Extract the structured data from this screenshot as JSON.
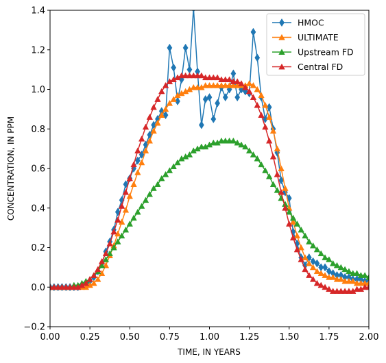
{
  "chart_data": {
    "type": "line",
    "xlabel": "TIME, IN YEARS",
    "ylabel": "CONCENTRATION, IN PPM",
    "xlim": [
      0.0,
      2.0
    ],
    "ylim": [
      -0.2,
      1.4
    ],
    "xticks": [
      "0.00",
      "0.25",
      "0.50",
      "0.75",
      "1.00",
      "1.25",
      "1.50",
      "1.75",
      "2.00"
    ],
    "yticks": [
      "−0.2",
      "0.0",
      "0.2",
      "0.4",
      "0.6",
      "0.8",
      "1.0",
      "1.2",
      "1.4"
    ],
    "grid": false,
    "legend_position": "top-right",
    "series": [
      {
        "name": "HMOC",
        "color": "#1f77b4",
        "marker": "diamond",
        "x": [
          0.0,
          0.025,
          0.05,
          0.075,
          0.1,
          0.125,
          0.15,
          0.175,
          0.2,
          0.225,
          0.25,
          0.275,
          0.3,
          0.325,
          0.35,
          0.375,
          0.4,
          0.425,
          0.45,
          0.475,
          0.5,
          0.525,
          0.55,
          0.575,
          0.6,
          0.625,
          0.65,
          0.675,
          0.7,
          0.725,
          0.75,
          0.775,
          0.8,
          0.825,
          0.85,
          0.875,
          0.9,
          0.925,
          0.95,
          0.975,
          1.0,
          1.025,
          1.05,
          1.075,
          1.1,
          1.125,
          1.15,
          1.175,
          1.2,
          1.225,
          1.25,
          1.275,
          1.3,
          1.325,
          1.35,
          1.375,
          1.4,
          1.425,
          1.45,
          1.475,
          1.5,
          1.525,
          1.55,
          1.575,
          1.6,
          1.625,
          1.65,
          1.675,
          1.7,
          1.725,
          1.75,
          1.775,
          1.8,
          1.825,
          1.85,
          1.875,
          1.9,
          1.925,
          1.95,
          1.975,
          2.0
        ],
        "y": [
          0.0,
          0.0,
          0.0,
          0.0,
          0.0,
          0.0,
          0.0,
          0.0,
          0.01,
          0.02,
          0.03,
          0.05,
          0.08,
          0.12,
          0.18,
          0.23,
          0.29,
          0.38,
          0.44,
          0.52,
          0.55,
          0.6,
          0.64,
          0.67,
          0.72,
          0.77,
          0.82,
          0.85,
          0.89,
          0.87,
          1.21,
          1.11,
          0.94,
          1.05,
          1.21,
          1.1,
          1.41,
          1.09,
          0.82,
          0.95,
          0.96,
          0.85,
          0.93,
          1.01,
          0.96,
          1.0,
          1.08,
          0.96,
          1.0,
          0.99,
          0.98,
          1.29,
          1.16,
          0.96,
          0.85,
          0.91,
          0.8,
          0.68,
          0.54,
          0.48,
          0.45,
          0.28,
          0.22,
          0.15,
          0.11,
          0.15,
          0.13,
          0.12,
          0.1,
          0.1,
          0.08,
          0.07,
          0.06,
          0.06,
          0.05,
          0.05,
          0.04,
          0.04,
          0.04,
          0.03,
          0.03
        ]
      },
      {
        "name": "ULTIMATE",
        "color": "#ff7f0e",
        "marker": "triangle",
        "x": [
          0.0,
          0.025,
          0.05,
          0.075,
          0.1,
          0.125,
          0.15,
          0.175,
          0.2,
          0.225,
          0.25,
          0.275,
          0.3,
          0.325,
          0.35,
          0.375,
          0.4,
          0.425,
          0.45,
          0.475,
          0.5,
          0.525,
          0.55,
          0.575,
          0.6,
          0.625,
          0.65,
          0.675,
          0.7,
          0.725,
          0.75,
          0.775,
          0.8,
          0.825,
          0.85,
          0.875,
          0.9,
          0.925,
          0.95,
          0.975,
          1.0,
          1.025,
          1.05,
          1.075,
          1.1,
          1.125,
          1.15,
          1.175,
          1.2,
          1.225,
          1.25,
          1.275,
          1.3,
          1.325,
          1.35,
          1.375,
          1.4,
          1.425,
          1.45,
          1.475,
          1.5,
          1.525,
          1.55,
          1.575,
          1.6,
          1.625,
          1.65,
          1.675,
          1.7,
          1.725,
          1.75,
          1.775,
          1.8,
          1.825,
          1.85,
          1.875,
          1.9,
          1.925,
          1.95,
          1.975,
          2.0
        ],
        "y": [
          0.0,
          0.0,
          0.0,
          0.0,
          0.0,
          0.0,
          0.0,
          0.0,
          0.0,
          0.0,
          0.01,
          0.02,
          0.04,
          0.07,
          0.11,
          0.16,
          0.21,
          0.27,
          0.33,
          0.39,
          0.46,
          0.52,
          0.58,
          0.63,
          0.69,
          0.74,
          0.79,
          0.83,
          0.87,
          0.9,
          0.93,
          0.95,
          0.97,
          0.98,
          0.99,
          1.0,
          1.01,
          1.01,
          1.01,
          1.02,
          1.02,
          1.02,
          1.02,
          1.02,
          1.02,
          1.02,
          1.02,
          1.02,
          1.02,
          1.02,
          1.03,
          1.02,
          1.0,
          0.97,
          0.92,
          0.86,
          0.79,
          0.7,
          0.6,
          0.5,
          0.4,
          0.33,
          0.26,
          0.2,
          0.15,
          0.12,
          0.1,
          0.08,
          0.07,
          0.06,
          0.05,
          0.05,
          0.04,
          0.04,
          0.03,
          0.03,
          0.03,
          0.02,
          0.02,
          0.02,
          0.02
        ]
      },
      {
        "name": "Upstream FD",
        "color": "#2ca02c",
        "marker": "triangle",
        "x": [
          0.0,
          0.025,
          0.05,
          0.075,
          0.1,
          0.125,
          0.15,
          0.175,
          0.2,
          0.225,
          0.25,
          0.275,
          0.3,
          0.325,
          0.35,
          0.375,
          0.4,
          0.425,
          0.45,
          0.475,
          0.5,
          0.525,
          0.55,
          0.575,
          0.6,
          0.625,
          0.65,
          0.675,
          0.7,
          0.725,
          0.75,
          0.775,
          0.8,
          0.825,
          0.85,
          0.875,
          0.9,
          0.925,
          0.95,
          0.975,
          1.0,
          1.025,
          1.05,
          1.075,
          1.1,
          1.125,
          1.15,
          1.175,
          1.2,
          1.225,
          1.25,
          1.275,
          1.3,
          1.325,
          1.35,
          1.375,
          1.4,
          1.425,
          1.45,
          1.475,
          1.5,
          1.525,
          1.55,
          1.575,
          1.6,
          1.625,
          1.65,
          1.675,
          1.7,
          1.725,
          1.75,
          1.775,
          1.8,
          1.825,
          1.85,
          1.875,
          1.9,
          1.925,
          1.95,
          1.975,
          2.0
        ],
        "y": [
          0.0,
          0.0,
          0.0,
          0.0,
          0.0,
          0.0,
          0.01,
          0.01,
          0.02,
          0.03,
          0.04,
          0.06,
          0.08,
          0.11,
          0.14,
          0.17,
          0.2,
          0.23,
          0.26,
          0.29,
          0.32,
          0.35,
          0.38,
          0.41,
          0.44,
          0.47,
          0.5,
          0.52,
          0.55,
          0.57,
          0.59,
          0.61,
          0.63,
          0.65,
          0.66,
          0.67,
          0.69,
          0.7,
          0.71,
          0.71,
          0.72,
          0.73,
          0.73,
          0.74,
          0.74,
          0.74,
          0.74,
          0.73,
          0.72,
          0.71,
          0.69,
          0.67,
          0.65,
          0.62,
          0.59,
          0.56,
          0.52,
          0.49,
          0.45,
          0.42,
          0.38,
          0.35,
          0.32,
          0.29,
          0.26,
          0.23,
          0.21,
          0.19,
          0.17,
          0.15,
          0.14,
          0.12,
          0.11,
          0.1,
          0.09,
          0.08,
          0.07,
          0.07,
          0.06,
          0.06,
          0.05
        ]
      },
      {
        "name": "Central FD",
        "color": "#d62728",
        "marker": "triangle",
        "x": [
          0.0,
          0.025,
          0.05,
          0.075,
          0.1,
          0.125,
          0.15,
          0.175,
          0.2,
          0.225,
          0.25,
          0.275,
          0.3,
          0.325,
          0.35,
          0.375,
          0.4,
          0.425,
          0.45,
          0.475,
          0.5,
          0.525,
          0.55,
          0.575,
          0.6,
          0.625,
          0.65,
          0.675,
          0.7,
          0.725,
          0.75,
          0.775,
          0.8,
          0.825,
          0.85,
          0.875,
          0.9,
          0.925,
          0.95,
          0.975,
          1.0,
          1.025,
          1.05,
          1.075,
          1.1,
          1.125,
          1.15,
          1.175,
          1.2,
          1.225,
          1.25,
          1.275,
          1.3,
          1.325,
          1.35,
          1.375,
          1.4,
          1.425,
          1.45,
          1.475,
          1.5,
          1.525,
          1.55,
          1.575,
          1.6,
          1.625,
          1.65,
          1.675,
          1.7,
          1.725,
          1.75,
          1.775,
          1.8,
          1.825,
          1.85,
          1.875,
          1.9,
          1.925,
          1.95,
          1.975,
          2.0
        ],
        "y": [
          0.0,
          0.0,
          0.0,
          0.0,
          0.0,
          0.0,
          0.0,
          0.0,
          0.01,
          0.02,
          0.04,
          0.06,
          0.09,
          0.13,
          0.17,
          0.22,
          0.28,
          0.34,
          0.41,
          0.48,
          0.55,
          0.62,
          0.69,
          0.75,
          0.81,
          0.86,
          0.91,
          0.95,
          0.99,
          1.02,
          1.04,
          1.05,
          1.06,
          1.07,
          1.07,
          1.07,
          1.07,
          1.07,
          1.07,
          1.06,
          1.06,
          1.06,
          1.06,
          1.05,
          1.05,
          1.05,
          1.04,
          1.04,
          1.03,
          1.01,
          0.99,
          0.96,
          0.92,
          0.87,
          0.81,
          0.74,
          0.66,
          0.57,
          0.48,
          0.4,
          0.32,
          0.25,
          0.19,
          0.14,
          0.09,
          0.06,
          0.04,
          0.02,
          0.01,
          0.0,
          -0.01,
          -0.02,
          -0.02,
          -0.02,
          -0.02,
          -0.02,
          -0.02,
          -0.01,
          -0.01,
          0.0,
          0.0
        ]
      }
    ]
  }
}
